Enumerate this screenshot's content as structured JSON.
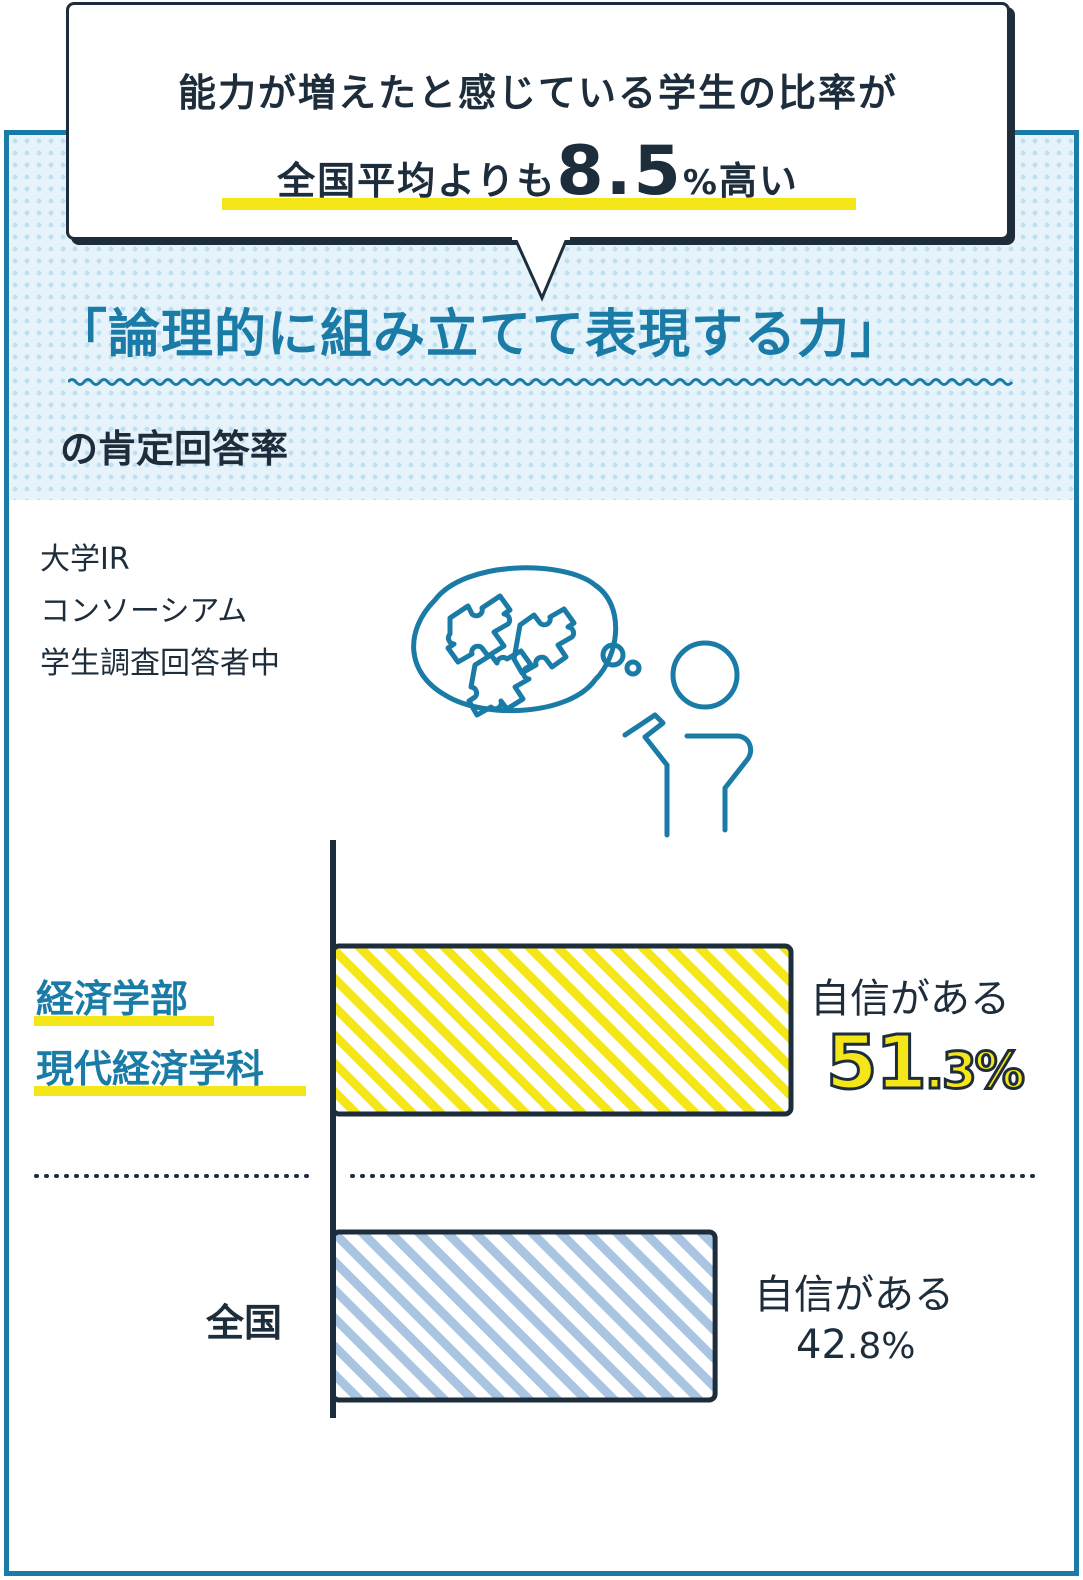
{
  "callout": {
    "line1": "能力が増えたと感じている学生の比率が",
    "line2_prefix": "全国平均よりも",
    "line2_value": "8.5",
    "line2_unit": "%",
    "line2_suffix": "高い"
  },
  "topic": {
    "title": "「論理的に組み立てて表現する力」",
    "subtitle": "の肯定回答率"
  },
  "source": {
    "lines": [
      "大学IR",
      "コンソーシアム",
      "学生調査回答者中"
    ]
  },
  "colors": {
    "accent_blue": "#1a7ba7",
    "dark": "#1e2d3b",
    "yellow": "#f5e61a",
    "light_blue_hatch": "#a9c5e1"
  },
  "icons": {
    "illustration": "person-thinking-puzzle-icon"
  },
  "chart_data": {
    "type": "bar",
    "orientation": "horizontal",
    "categories": [
      "経済学部\n現代経済学科",
      "全国"
    ],
    "category_lines": [
      [
        "経済学部",
        "現代経済学科"
      ],
      [
        "全国"
      ]
    ],
    "values": [
      51.3,
      42.8
    ],
    "unit": "%",
    "value_caption": "自信がある",
    "value_labels": [
      {
        "int": "51",
        "dec": ".3",
        "unit": "%"
      },
      {
        "int": "42",
        "dec": ".8",
        "unit": "%"
      }
    ],
    "title": "",
    "xlabel": "",
    "ylabel": "",
    "grid": false,
    "legend": "none"
  }
}
